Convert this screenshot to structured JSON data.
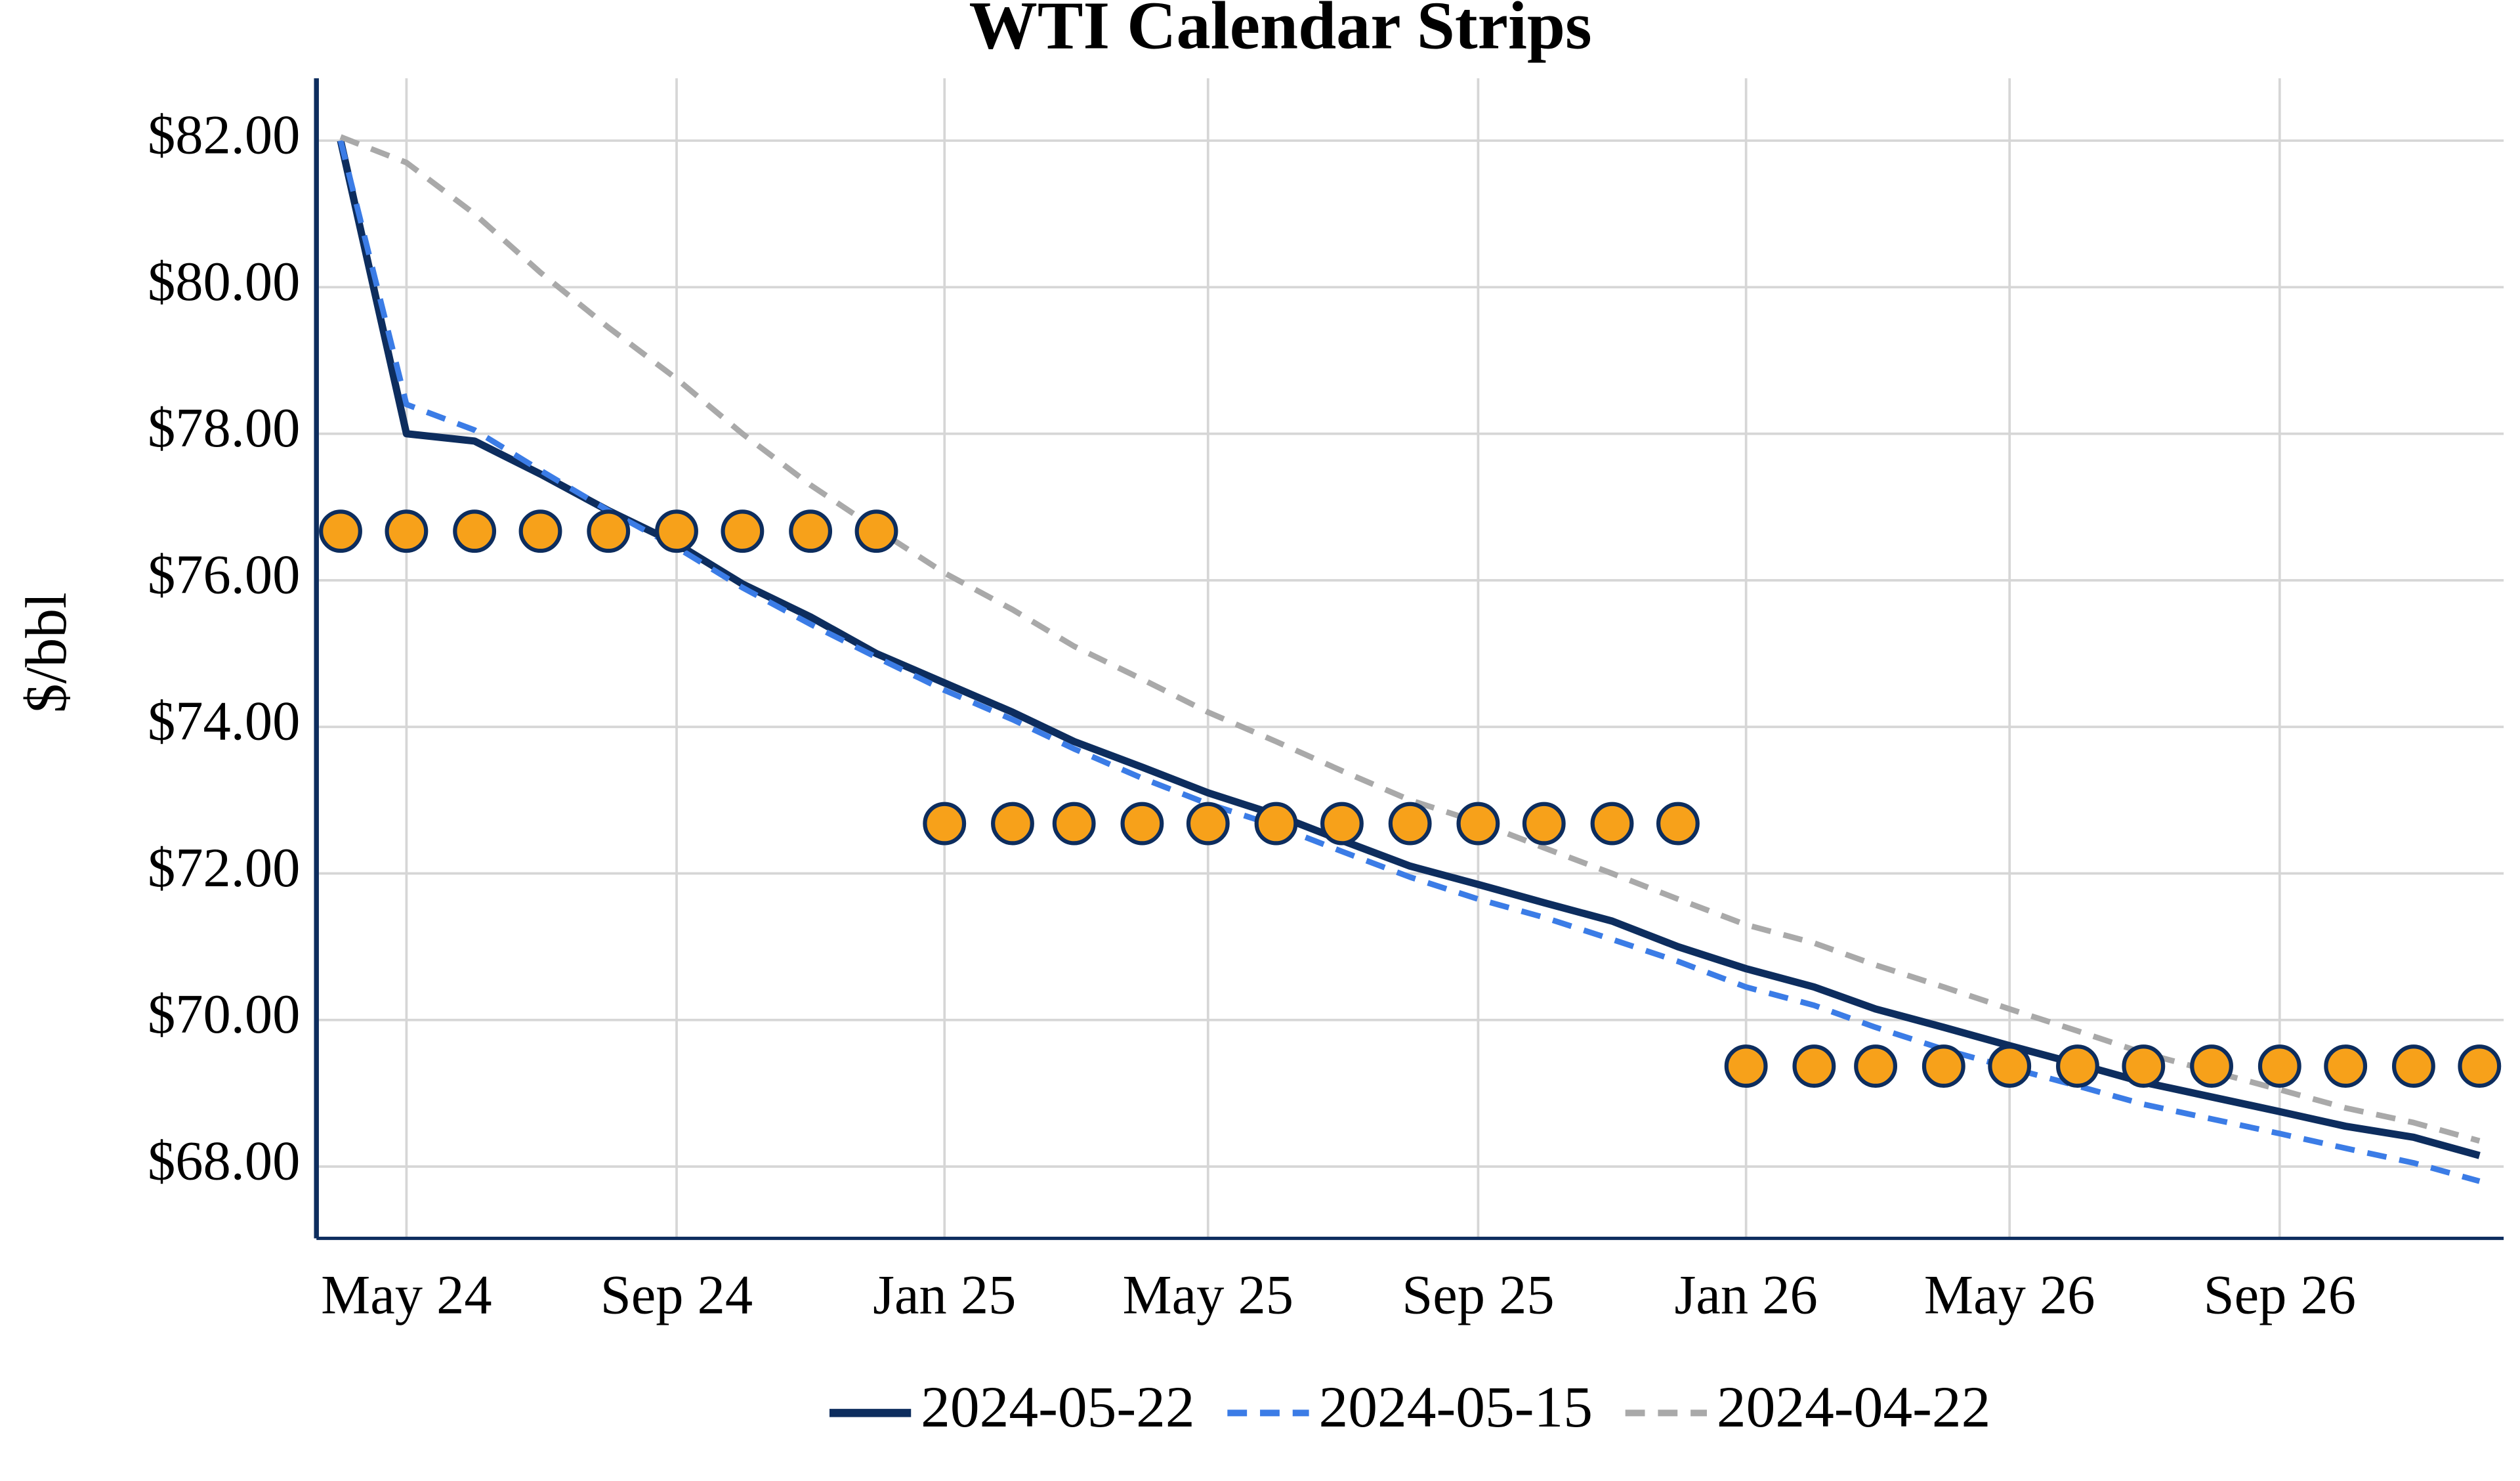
{
  "chart_data": {
    "type": "line",
    "title": "WTI Calendar Strips",
    "y_label": "$/bbl",
    "x": [
      "2024-04",
      "2024-05",
      "2024-06",
      "2024-07",
      "2024-08",
      "2024-09",
      "2024-10",
      "2024-11",
      "2024-12",
      "2025-01",
      "2025-02",
      "2025-03",
      "2025-04",
      "2025-05",
      "2025-06",
      "2025-07",
      "2025-08",
      "2025-09",
      "2025-10",
      "2025-11",
      "2025-12",
      "2026-01",
      "2026-02",
      "2026-03",
      "2026-04",
      "2026-05",
      "2026-06",
      "2026-07",
      "2026-08",
      "2026-09",
      "2026-10",
      "2026-11",
      "2026-12"
    ],
    "series": [
      {
        "name": "2024-05-22",
        "color": "#0d2d5e",
        "dash": "solid",
        "mode": "line",
        "values": [
          82.0,
          78.0,
          77.9,
          77.45,
          76.95,
          76.5,
          75.95,
          75.5,
          75.0,
          74.6,
          74.2,
          73.8,
          73.45,
          73.1,
          72.8,
          72.45,
          72.1,
          71.85,
          71.6,
          71.35,
          71.0,
          70.7,
          70.45,
          70.15,
          69.9,
          69.65,
          69.4,
          69.15,
          68.95,
          68.75,
          68.55,
          68.4,
          68.15
        ]
      },
      {
        "name": "2024-05-15",
        "color": "#3b7ce6",
        "dash": "dash",
        "mode": "line",
        "values": [
          82.0,
          78.4,
          78.05,
          77.5,
          76.95,
          76.45,
          75.9,
          75.4,
          74.95,
          74.5,
          74.1,
          73.7,
          73.3,
          72.95,
          72.65,
          72.3,
          71.95,
          71.65,
          71.4,
          71.1,
          70.8,
          70.45,
          70.2,
          69.9,
          69.6,
          69.35,
          69.1,
          68.85,
          68.65,
          68.45,
          68.25,
          68.05,
          67.8
        ]
      },
      {
        "name": "2024-04-22",
        "color": "#a9a9a9",
        "dash": "dash",
        "mode": "line",
        "values": [
          82.05,
          81.7,
          81.0,
          80.2,
          79.45,
          78.75,
          78.0,
          77.3,
          76.7,
          76.1,
          75.6,
          75.1,
          74.65,
          74.2,
          73.8,
          73.4,
          73.0,
          72.7,
          72.35,
          72.0,
          71.65,
          71.3,
          71.05,
          70.75,
          70.45,
          70.15,
          69.85,
          69.55,
          69.3,
          69.05,
          68.8,
          68.6,
          68.35
        ]
      },
      {
        "color": "#f7a11a",
        "edge_color": "#0d2d5e",
        "mode": "markers",
        "values": [
          76.67,
          76.67,
          76.67,
          76.67,
          76.67,
          76.67,
          76.67,
          76.67,
          76.67,
          72.68,
          72.68,
          72.68,
          72.68,
          72.68,
          72.68,
          72.68,
          72.68,
          72.68,
          72.68,
          72.68,
          72.68,
          69.37,
          69.37,
          69.37,
          69.37,
          69.37,
          69.37,
          69.37,
          69.37,
          69.37,
          69.37,
          69.37,
          69.37
        ]
      }
    ],
    "xlim": [
      "2024-03-21",
      "2026-12-12"
    ],
    "xticks": [
      {
        "value": "2024-05",
        "label": "May 24"
      },
      {
        "value": "2024-09",
        "label": "Sep 24"
      },
      {
        "value": "2025-01",
        "label": "Jan 25"
      },
      {
        "value": "2025-05",
        "label": "May 25"
      },
      {
        "value": "2025-09",
        "label": "Sep 25"
      },
      {
        "value": "2026-01",
        "label": "Jan 26"
      },
      {
        "value": "2026-05",
        "label": "May 26"
      },
      {
        "value": "2026-09",
        "label": "Sep 26"
      }
    ],
    "ylim": [
      67.02,
      82.85
    ],
    "yticks": [
      {
        "value": 68,
        "label": "$68.00"
      },
      {
        "value": 70,
        "label": "$70.00"
      },
      {
        "value": 72,
        "label": "$72.00"
      },
      {
        "value": 74,
        "label": "$74.00"
      },
      {
        "value": 76,
        "label": "$76.00"
      },
      {
        "value": 78,
        "label": "$78.00"
      },
      {
        "value": 80,
        "label": "$80.00"
      },
      {
        "value": 82,
        "label": "$82.00"
      }
    ],
    "grid": true,
    "legend": "bottom"
  }
}
